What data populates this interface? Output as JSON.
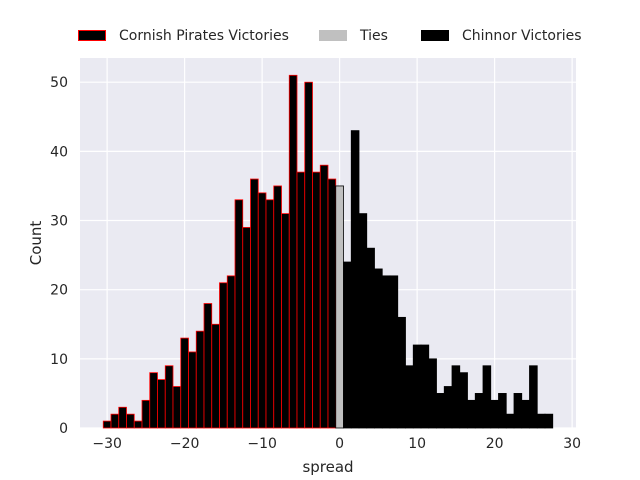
{
  "chart_data": {
    "type": "bar",
    "xlabel": "spread",
    "ylabel": "Count",
    "xlim": [
      -33.5,
      30.5
    ],
    "ylim": [
      0,
      53.5
    ],
    "xticks": [
      -30,
      -20,
      -10,
      0,
      10,
      20,
      30
    ],
    "xtick_labels": [
      "−30",
      "−20",
      "−10",
      "0",
      "10",
      "20",
      "30"
    ],
    "yticks": [
      0,
      10,
      20,
      30,
      40,
      50
    ],
    "ytick_labels": [
      "0",
      "10",
      "20",
      "30",
      "40",
      "50"
    ],
    "grid": true,
    "legend_position": "top",
    "series": [
      {
        "name": "Cornish Pirates Victories",
        "fill": "#000000",
        "edge": "#ff0000",
        "x": [
          -30,
          -29,
          -28,
          -27,
          -26,
          -25,
          -24,
          -23,
          -22,
          -21,
          -20,
          -19,
          -18,
          -17,
          -16,
          -15,
          -14,
          -13,
          -12,
          -11,
          -10,
          -9,
          -8,
          -7,
          -6,
          -5,
          -4,
          -3,
          -2,
          -1
        ],
        "values": [
          1,
          2,
          3,
          2,
          1,
          4,
          8,
          7,
          9,
          6,
          13,
          11,
          14,
          18,
          15,
          21,
          22,
          33,
          29,
          36,
          34,
          33,
          35,
          31,
          51,
          37,
          50,
          37,
          38,
          36
        ]
      },
      {
        "name": "Ties",
        "fill": "#c0c0c0",
        "edge": "#000000",
        "x": [
          0
        ],
        "values": [
          35
        ]
      },
      {
        "name": "Chinnor Victories",
        "fill": "#000000",
        "edge": "#000000",
        "x": [
          1,
          2,
          3,
          4,
          5,
          6,
          7,
          8,
          9,
          10,
          11,
          12,
          13,
          14,
          15,
          16,
          17,
          18,
          19,
          20,
          21,
          22,
          23,
          24,
          25,
          26,
          27
        ],
        "values": [
          24,
          43,
          31,
          26,
          23,
          22,
          22,
          16,
          9,
          12,
          12,
          10,
          5,
          6,
          9,
          8,
          4,
          5,
          9,
          4,
          5,
          2,
          5,
          4,
          9,
          2,
          2
        ]
      }
    ]
  }
}
